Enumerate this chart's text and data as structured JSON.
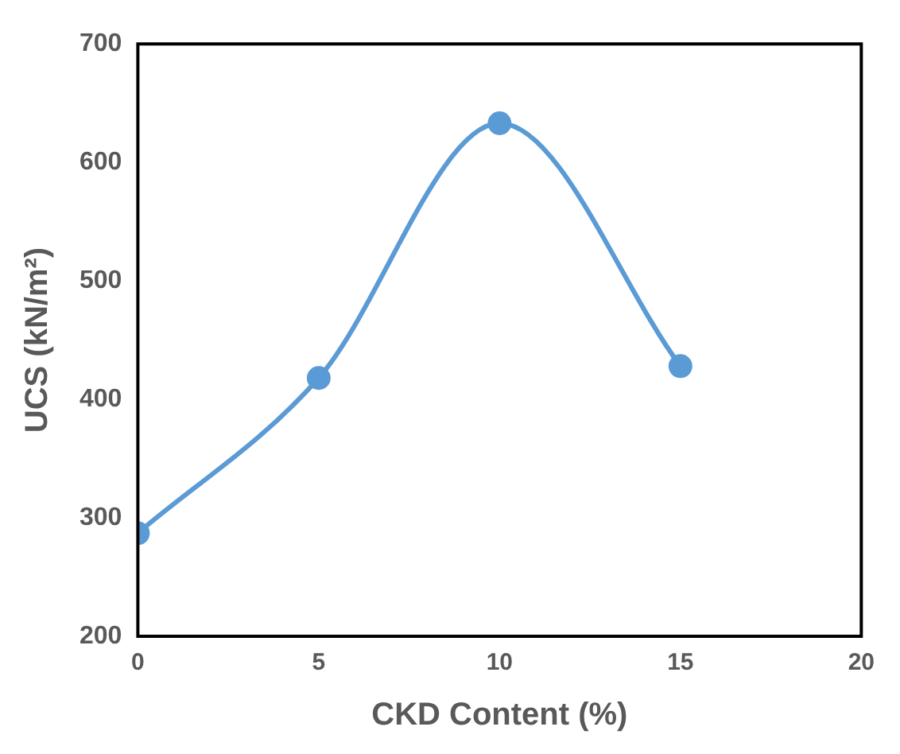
{
  "chart_data": {
    "type": "line",
    "xlabel": "CKD Content (%)",
    "ylabel": "UCS (kN/m²)",
    "x": [
      0,
      5,
      10,
      15
    ],
    "series": [
      {
        "color": "#5b9bd5",
        "values": [
          287,
          418,
          633,
          428
        ]
      }
    ],
    "xlim": [
      0,
      20
    ],
    "xticks": [
      0,
      5,
      10,
      15,
      20
    ],
    "ylim": [
      200,
      700
    ],
    "yticks": [
      200,
      300,
      400,
      500,
      600,
      700
    ],
    "grid": false,
    "legend": false,
    "marker": "circle",
    "line_style": "solid"
  }
}
